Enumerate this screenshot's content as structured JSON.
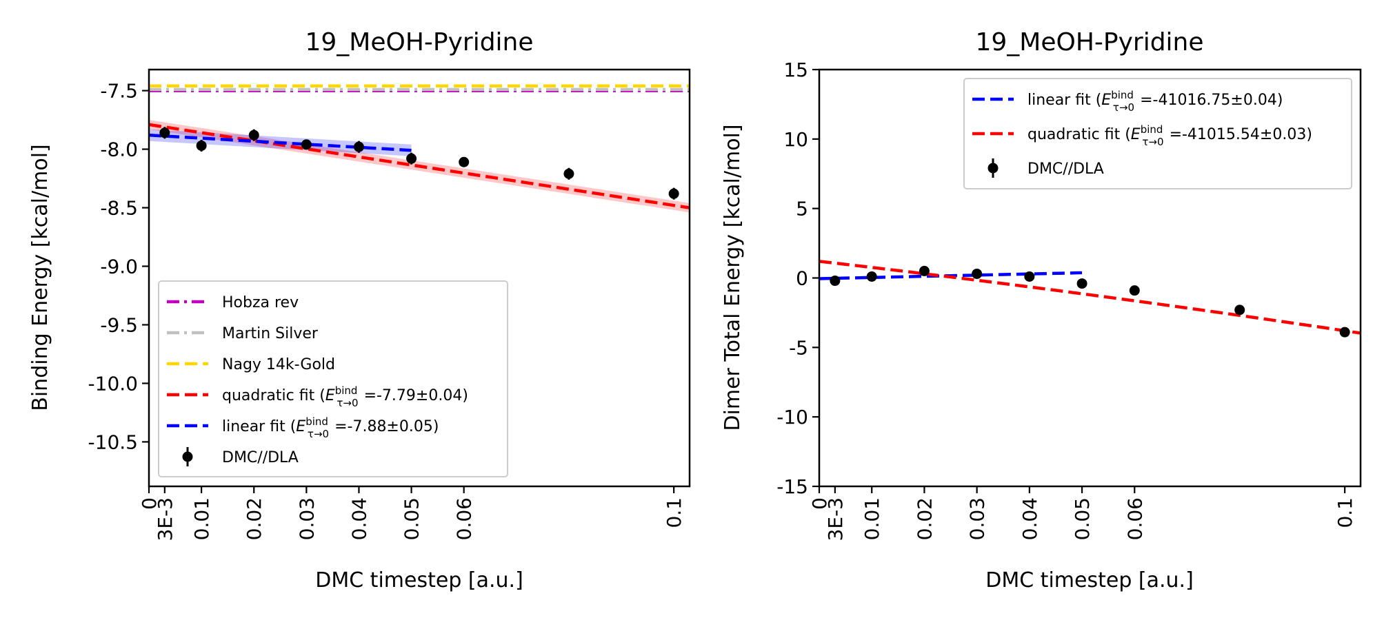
{
  "chart_data": [
    {
      "type": "line",
      "title": "19_MeOH-Pyridine",
      "xlabel": "DMC timestep [a.u.]",
      "ylabel": "Binding Energy [kcal/mol]",
      "xlim": [
        0,
        0.103
      ],
      "ylim": [
        -10.88,
        -7.32
      ],
      "x_ticks": [
        {
          "value": 0,
          "label": "0"
        },
        {
          "value": 0.003,
          "label": "3E-3"
        },
        {
          "value": 0.01,
          "label": "0.01"
        },
        {
          "value": 0.02,
          "label": "0.02"
        },
        {
          "value": 0.03,
          "label": "0.03"
        },
        {
          "value": 0.04,
          "label": "0.04"
        },
        {
          "value": 0.05,
          "label": "0.05"
        },
        {
          "value": 0.06,
          "label": "0.06"
        },
        {
          "value": 0.1,
          "label": "0.1"
        }
      ],
      "y_ticks": [
        {
          "value": -7.5,
          "label": "-7.5"
        },
        {
          "value": -8.0,
          "label": "-8.0"
        },
        {
          "value": -8.5,
          "label": "-8.5"
        },
        {
          "value": -9.0,
          "label": "-9.0"
        },
        {
          "value": -9.5,
          "label": "-9.5"
        },
        {
          "value": -10.0,
          "label": "-10.0"
        },
        {
          "value": -10.5,
          "label": "-10.5"
        }
      ],
      "grid": false,
      "legend_position": "lower-left",
      "reference_lines": [
        {
          "name": "Hobza rev",
          "y": -7.5,
          "color": "#bf00bf",
          "style": "dashdot"
        },
        {
          "name": "Martin Silver",
          "y": -7.49,
          "color": "#c0c0c0",
          "style": "dashdot"
        },
        {
          "name": "Nagy 14k-Gold",
          "y": -7.46,
          "color": "#ffd700",
          "style": "dashed"
        }
      ],
      "fits": [
        {
          "name": "quadratic fit",
          "legend_value": "=-7.79±0.04",
          "color": "#ff0000",
          "x_range": [
            0,
            0.103
          ],
          "coeffs": [
            -7.79,
            -6.9,
            0
          ],
          "band": 0.04
        },
        {
          "name": "linear fit",
          "legend_value": "=-7.88±0.05",
          "color": "#0000ff",
          "x_range": [
            0,
            0.05
          ],
          "coeffs": [
            -7.88,
            -2.6,
            0
          ],
          "band": 0.05
        }
      ],
      "series": [
        {
          "name": "DMC//DLA",
          "color": "#000000",
          "x": [
            0.003,
            0.01,
            0.02,
            0.03,
            0.04,
            0.05,
            0.06,
            0.08,
            0.1
          ],
          "y": [
            -7.86,
            -7.97,
            -7.88,
            -7.96,
            -7.98,
            -8.08,
            -8.11,
            -8.21,
            -8.38
          ],
          "err": [
            0.05,
            0.05,
            0.05,
            0.03,
            0.05,
            0.05,
            0.04,
            0.05,
            0.05
          ]
        }
      ],
      "legend": [
        {
          "kind": "dashdot",
          "color": "#bf00bf",
          "label": "Hobza rev"
        },
        {
          "kind": "dashdot",
          "color": "#c0c0c0",
          "label": "Martin Silver"
        },
        {
          "kind": "dashed",
          "color": "#ffd700",
          "label": "Nagy 14k-Gold"
        },
        {
          "kind": "dashed",
          "color": "#ff0000",
          "label": "quadratic fit",
          "value": "=-7.79±0.04"
        },
        {
          "kind": "dashed",
          "color": "#0000ff",
          "label": "linear fit",
          "value": "=-7.88±0.05"
        },
        {
          "kind": "marker",
          "color": "#000000",
          "label": "DMC//DLA"
        }
      ]
    },
    {
      "type": "line",
      "title": "19_MeOH-Pyridine",
      "xlabel": "DMC timestep [a.u.]",
      "ylabel": "Dimer Total Energy [kcal/mol]",
      "xlim": [
        0,
        0.103
      ],
      "ylim": [
        -15,
        15
      ],
      "x_ticks": [
        {
          "value": 0,
          "label": "0"
        },
        {
          "value": 0.003,
          "label": "3E-3"
        },
        {
          "value": 0.01,
          "label": "0.01"
        },
        {
          "value": 0.02,
          "label": "0.02"
        },
        {
          "value": 0.03,
          "label": "0.03"
        },
        {
          "value": 0.04,
          "label": "0.04"
        },
        {
          "value": 0.05,
          "label": "0.05"
        },
        {
          "value": 0.06,
          "label": "0.06"
        },
        {
          "value": 0.1,
          "label": "0.1"
        }
      ],
      "y_ticks": [
        {
          "value": 15,
          "label": "15"
        },
        {
          "value": 10,
          "label": "10"
        },
        {
          "value": 5,
          "label": "5"
        },
        {
          "value": 0,
          "label": "0"
        },
        {
          "value": -5,
          "label": "-5"
        },
        {
          "value": -10,
          "label": "-10"
        },
        {
          "value": -15,
          "label": "-15"
        }
      ],
      "grid": false,
      "legend_position": "top-right",
      "reference_lines": [],
      "fits": [
        {
          "name": "linear fit",
          "legend_value": "=-41016.75±0.04",
          "color": "#0000ff",
          "x_range": [
            0,
            0.05
          ],
          "coeffs": [
            -0.05,
            8.5,
            0
          ],
          "band": 0
        },
        {
          "name": "quadratic fit",
          "legend_value": "=-41015.54±0.03",
          "color": "#ff0000",
          "x_range": [
            0,
            0.103
          ],
          "coeffs": [
            1.2,
            -43.5,
            -65
          ],
          "band": 0
        }
      ],
      "series": [
        {
          "name": "DMC//DLA",
          "color": "#000000",
          "x": [
            0.003,
            0.01,
            0.02,
            0.03,
            0.04,
            0.05,
            0.06,
            0.08,
            0.1
          ],
          "y": [
            -0.2,
            0.1,
            0.5,
            0.3,
            0.1,
            -0.4,
            -0.9,
            -2.3,
            -3.9
          ],
          "err": [
            0,
            0,
            0,
            0,
            0,
            0,
            0,
            0,
            0
          ]
        }
      ],
      "legend": [
        {
          "kind": "dashed",
          "color": "#0000ff",
          "label": "linear fit",
          "value": "=-41016.75±0.04"
        },
        {
          "kind": "dashed",
          "color": "#ff0000",
          "label": "quadratic fit",
          "value": "=-41015.54±0.03"
        },
        {
          "kind": "marker",
          "color": "#000000",
          "label": "DMC//DLA"
        }
      ]
    }
  ]
}
